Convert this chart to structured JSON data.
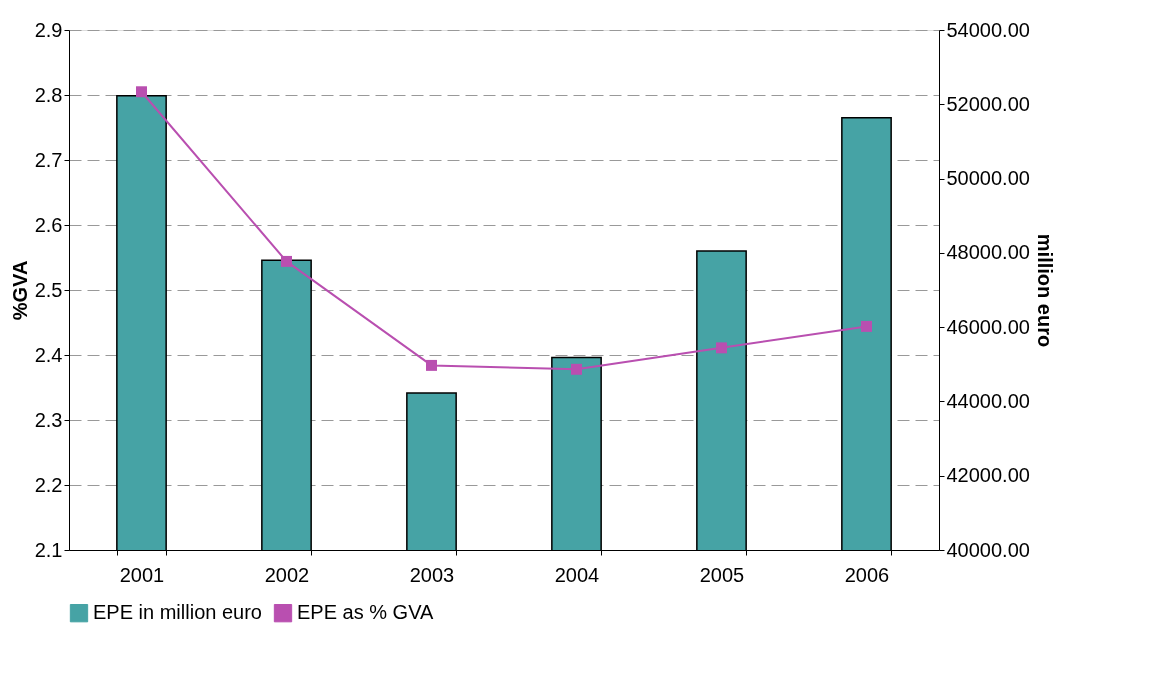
{
  "chart_data": {
    "type": "bar",
    "categories": [
      "2001",
      "2002",
      "2003",
      "2004",
      "2005",
      "2006"
    ],
    "ylabel": "%GVA",
    "y2label": "million euro",
    "ylim": [
      2.1,
      2.9
    ],
    "yticks": [
      2.1,
      2.2,
      2.3,
      2.4,
      2.5,
      2.6,
      2.7,
      2.8,
      2.9
    ],
    "y2lim": [
      40000,
      54000
    ],
    "y2ticks": [
      {
        "value": 40000,
        "label": "40000.00"
      },
      {
        "value": 42000,
        "label": "42000.00"
      },
      {
        "value": 44000,
        "label": "44000.00"
      },
      {
        "value": 46000,
        "label": "46000.00"
      },
      {
        "value": 48000,
        "label": "48000.00"
      },
      {
        "value": 50000,
        "label": "50000.00"
      },
      {
        "value": 52000,
        "label": "52000.00"
      },
      {
        "value": 54000,
        "label": "54000.00"
      }
    ],
    "series": [
      {
        "name": "EPE in million euro",
        "axis": "y2",
        "color": "#46a3a5",
        "values": [
          52230,
          47800,
          44230,
          45180,
          48050,
          51640
        ]
      },
      {
        "name": "EPE as % GVA",
        "type": "line",
        "color": "#b94fb0",
        "marker": "square",
        "values": [
          2.805,
          2.544,
          2.384,
          2.378,
          2.411,
          2.444
        ]
      }
    ],
    "grid": "y",
    "legend": "bottom"
  }
}
